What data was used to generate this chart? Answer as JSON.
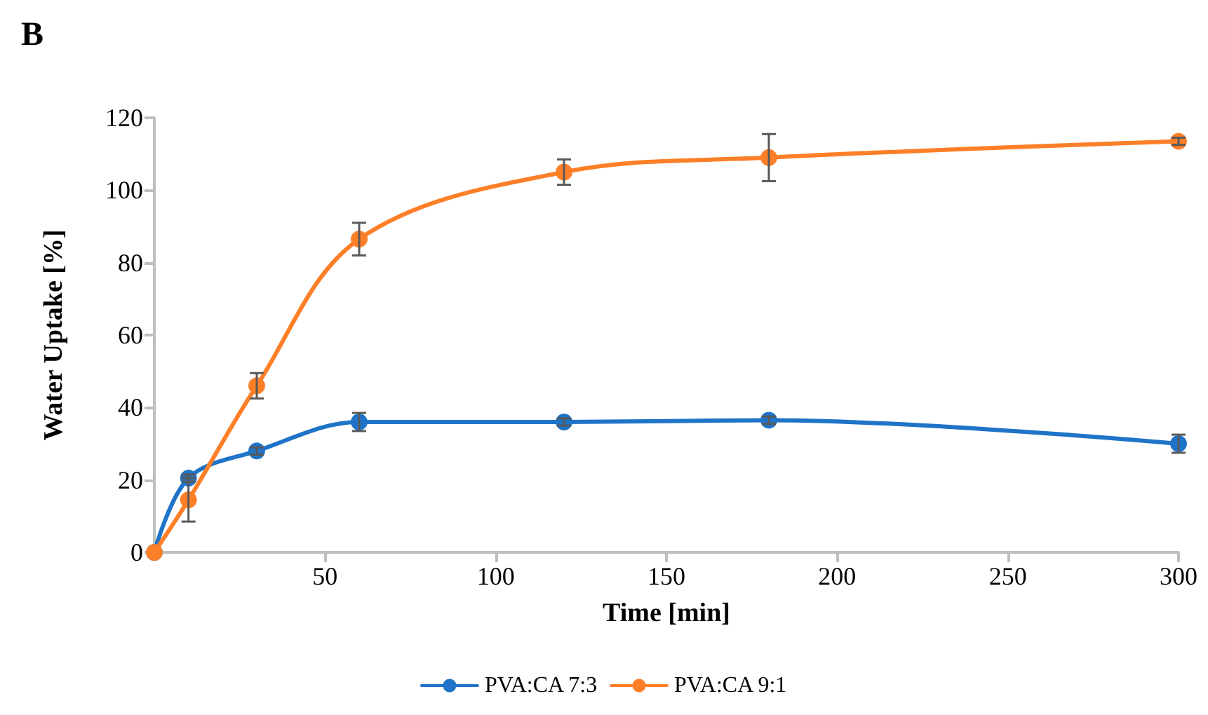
{
  "chart_data": {
    "type": "line",
    "title": "B",
    "xlabel": "Time [min]",
    "ylabel": "Water Uptake [%]",
    "x": [
      0,
      10,
      30,
      60,
      120,
      180,
      300
    ],
    "series": [
      {
        "name": "PVA:CA 7:3",
        "color": "#1f74c8",
        "values": [
          0,
          20.5,
          28,
          36,
          36,
          36.5,
          30
        ],
        "errors": [
          null,
          1,
          1,
          2.5,
          1,
          1,
          2.5
        ]
      },
      {
        "name": "PVA:CA 9:1",
        "color": "#fd7f28",
        "values": [
          0,
          14.5,
          46,
          86.5,
          105,
          109,
          113.5
        ],
        "errors": [
          null,
          6,
          3.5,
          4.5,
          3.5,
          6.5,
          1
        ]
      }
    ],
    "xlim": [
      0,
      300
    ],
    "xticks": [
      50,
      100,
      150,
      200,
      250,
      300
    ],
    "ylim": [
      0,
      120
    ],
    "yticks": [
      0,
      20,
      40,
      60,
      80,
      100,
      120
    ],
    "grid": false,
    "legend": "bottom",
    "marker": "circle",
    "line_style": "solid"
  }
}
